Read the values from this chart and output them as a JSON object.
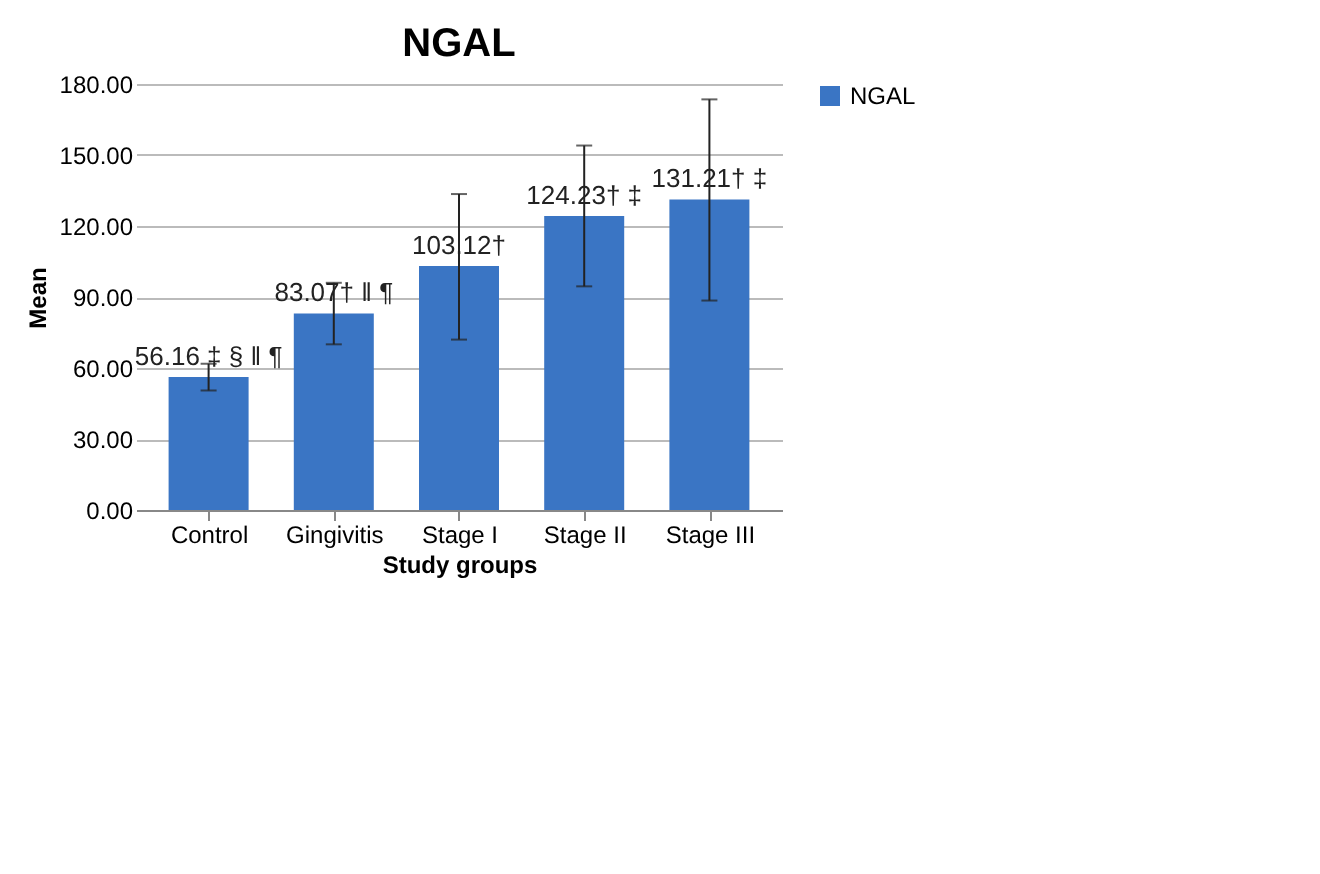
{
  "chart_data": {
    "type": "bar",
    "title": "NGAL",
    "xlabel": "Study groups",
    "ylabel": "Mean",
    "categories": [
      "Control",
      "Gingivitis",
      "Stage I",
      "Stage II",
      "Stage III"
    ],
    "series": [
      {
        "name": "NGAL",
        "color": "#3a75c4",
        "values": [
          56.16,
          83.07,
          103.12,
          124.23,
          131.21
        ],
        "errors": [
          [
            50.5,
            61.8
          ],
          [
            70,
            96
          ],
          [
            72,
            133.5
          ],
          [
            94.5,
            154
          ],
          [
            88.5,
            173.5
          ]
        ],
        "value_labels": [
          "56.16 ‡ § ‖ ¶",
          "83.07† ‖ ¶",
          "103.12†",
          "124.23† ‡",
          "131.21† ‡"
        ]
      }
    ],
    "ylim": [
      0,
      180
    ],
    "yticks": [
      {
        "value": 0,
        "label": "0.00"
      },
      {
        "value": 30,
        "label": "30.00"
      },
      {
        "value": 60,
        "label": "60.00"
      },
      {
        "value": 90,
        "label": "90.00"
      },
      {
        "value": 120,
        "label": "120.00"
      },
      {
        "value": 150,
        "label": "150.00"
      },
      {
        "value": 180,
        "label": "180.00"
      }
    ],
    "grid": "y",
    "legend": "right"
  }
}
